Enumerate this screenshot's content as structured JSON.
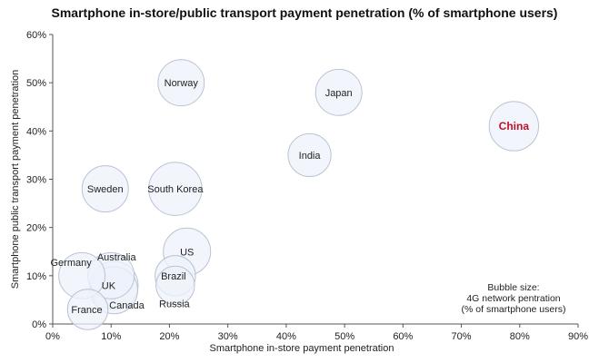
{
  "chart_data": {
    "type": "scatter",
    "title": "Smartphone in-store/public transport payment penetration (% of smartphone users)",
    "xlabel": "Smartphone in-store payment penetration",
    "ylabel": "Smartphone public transport payment penetration",
    "xlim": [
      0,
      90
    ],
    "ylim": [
      0,
      60
    ],
    "x_ticks": [
      0,
      10,
      20,
      30,
      40,
      50,
      60,
      70,
      80,
      90
    ],
    "y_ticks": [
      0,
      10,
      20,
      30,
      40,
      50,
      60
    ],
    "x_tick_labels": [
      "0%",
      "10%",
      "20%",
      "30%",
      "40%",
      "50%",
      "60%",
      "70%",
      "80%",
      "90%"
    ],
    "y_tick_labels": [
      "0%",
      "10%",
      "20%",
      "30%",
      "40%",
      "50%",
      "60%"
    ],
    "grid": false,
    "points": [
      {
        "label": "Norway",
        "x": 22,
        "y": 50,
        "size": 72
      },
      {
        "label": "Japan",
        "x": 49,
        "y": 48,
        "size": 72
      },
      {
        "label": "China",
        "x": 79,
        "y": 41,
        "size": 82,
        "highlight": true
      },
      {
        "label": "India",
        "x": 44,
        "y": 35,
        "size": 62
      },
      {
        "label": "Sweden",
        "x": 9,
        "y": 28,
        "size": 72
      },
      {
        "label": "South Korea",
        "x": 21,
        "y": 28,
        "size": 95
      },
      {
        "label": "US",
        "x": 23,
        "y": 15,
        "size": 75
      },
      {
        "label": "Australia",
        "x": 10,
        "y": 10,
        "size": 72
      },
      {
        "label": "Germany",
        "x": 5,
        "y": 10,
        "size": 72
      },
      {
        "label": "UK",
        "x": 10.5,
        "y": 8,
        "size": 78
      },
      {
        "label": "Canada",
        "x": 10.5,
        "y": 7,
        "size": 75
      },
      {
        "label": "Brazil",
        "x": 21,
        "y": 10,
        "size": 55
      },
      {
        "label": "Russia",
        "x": 21,
        "y": 8,
        "size": 50
      },
      {
        "label": "France",
        "x": 6,
        "y": 3,
        "size": 55
      }
    ],
    "note": [
      "Bubble size:",
      "4G network pentration",
      "(% of smartphone users)"
    ]
  }
}
